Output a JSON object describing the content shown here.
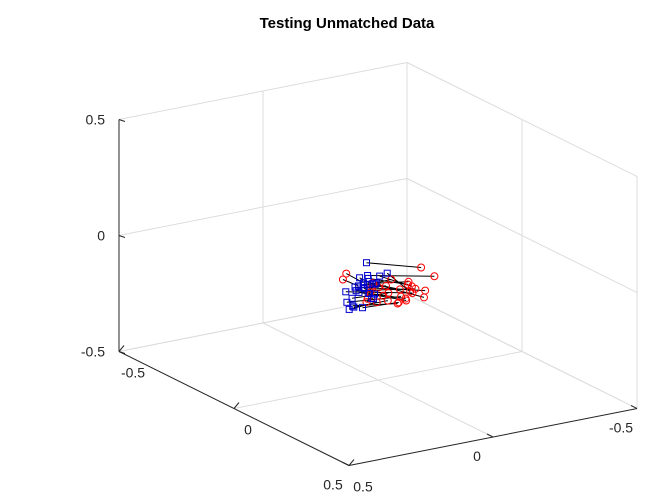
{
  "chart_data": {
    "type": "scatter",
    "title": "Testing Unmatched Data",
    "xlim": [
      -0.5,
      0.5
    ],
    "ylim": [
      -0.5,
      0.5
    ],
    "zlim": [
      -0.5,
      0.5
    ],
    "x_ticks": [
      "-0.5",
      "0",
      "0.5"
    ],
    "y_ticks": [
      "-0.5",
      "0",
      "0.5"
    ],
    "z_ticks": [
      "-0.5",
      "0",
      "0.5"
    ],
    "grid": true,
    "colors": {
      "set_a": "#ff0000",
      "set_b": "#0000cc",
      "link": "#000000"
    },
    "markers": {
      "set_a": "circle",
      "set_b": "square"
    },
    "pairs": [
      {
        "a": [
          0.05,
          0.15,
          0.02
        ],
        "b": [
          0.1,
          0.13,
          0.0
        ]
      },
      {
        "a": [
          0.01,
          0.13,
          -0.03
        ],
        "b": [
          0.04,
          0.1,
          -0.05
        ]
      },
      {
        "a": [
          0.15,
          -0.04,
          -0.08
        ],
        "b": [
          0.05,
          0.05,
          -0.05
        ]
      },
      {
        "a": [
          0.25,
          0.05,
          0.12
        ],
        "b": [
          0.05,
          0.08,
          0.05
        ]
      },
      {
        "a": [
          0.22,
          -0.02,
          0.05
        ],
        "b": [
          0.03,
          0.06,
          -0.02
        ]
      },
      {
        "a": [
          0.18,
          0.04,
          0.01
        ],
        "b": [
          0.02,
          0.05,
          -0.04
        ]
      },
      {
        "a": [
          0.12,
          -0.01,
          -0.02
        ],
        "b": [
          0.03,
          0.03,
          -0.06
        ]
      },
      {
        "a": [
          0.08,
          -0.1,
          -0.1
        ],
        "b": [
          0.0,
          0.08,
          -0.08
        ]
      },
      {
        "a": [
          0.09,
          0.07,
          -0.04
        ],
        "b": [
          0.02,
          0.08,
          -0.03
        ]
      },
      {
        "a": [
          0.06,
          0.02,
          -0.06
        ],
        "b": [
          0.0,
          0.05,
          -0.09
        ]
      },
      {
        "a": [
          0.1,
          -0.05,
          -0.07
        ],
        "b": [
          -0.02,
          0.06,
          -0.11
        ]
      },
      {
        "a": [
          0.07,
          0.01,
          -0.03
        ],
        "b": [
          0.03,
          0.06,
          -0.06
        ]
      },
      {
        "a": [
          0.04,
          0.05,
          -0.05
        ],
        "b": [
          0.01,
          0.06,
          -0.07
        ]
      },
      {
        "a": [
          0.03,
          0.05,
          -0.08
        ],
        "b": [
          0.0,
          0.03,
          -0.12
        ]
      },
      {
        "a": [
          0.08,
          0.09,
          -0.06
        ],
        "b": [
          -0.01,
          0.04,
          -0.1
        ]
      },
      {
        "a": [
          0.12,
          0.0,
          -0.09
        ],
        "b": [
          0.01,
          0.02,
          -0.12
        ]
      },
      {
        "a": [
          0.05,
          -0.08,
          -0.12
        ],
        "b": [
          -0.04,
          0.08,
          -0.12
        ]
      },
      {
        "a": [
          0.06,
          0.03,
          -0.1
        ],
        "b": [
          -0.03,
          0.01,
          -0.14
        ]
      },
      {
        "a": [
          0.02,
          -0.02,
          -0.12
        ],
        "b": [
          -0.05,
          0.05,
          -0.16
        ]
      },
      {
        "a": [
          0.03,
          0.06,
          -0.12
        ],
        "b": [
          -0.02,
          0.0,
          -0.16
        ]
      },
      {
        "a": [
          0.0,
          -0.08,
          -0.16
        ],
        "b": [
          -0.06,
          0.06,
          -0.18
        ]
      },
      {
        "a": [
          0.05,
          0.08,
          -0.12
        ],
        "b": [
          -0.04,
          -0.01,
          -0.17
        ]
      },
      {
        "a": [
          -0.02,
          -0.05,
          -0.18
        ],
        "b": [
          -0.08,
          0.02,
          -0.22
        ]
      },
      {
        "a": [
          0.02,
          0.02,
          -0.15
        ],
        "b": [
          -0.1,
          0.02,
          -0.24
        ]
      },
      {
        "a": [
          0.01,
          -0.06,
          -0.18
        ],
        "b": [
          -0.06,
          0.04,
          -0.2
        ]
      },
      {
        "a": [
          0.06,
          -0.05,
          -0.14
        ],
        "b": [
          -0.02,
          0.05,
          -0.12
        ]
      },
      {
        "a": [
          -0.01,
          -0.08,
          -0.19
        ],
        "b": [
          -0.08,
          -0.01,
          -0.23
        ]
      },
      {
        "a": [
          0.07,
          -0.02,
          -0.08
        ],
        "b": [
          0.0,
          0.02,
          -0.08
        ]
      },
      {
        "a": [
          0.14,
          0.0,
          -0.05
        ],
        "b": [
          0.04,
          0.0,
          -0.02
        ]
      },
      {
        "a": [
          0.11,
          -0.03,
          -0.05
        ],
        "b": [
          0.02,
          0.01,
          -0.04
        ]
      }
    ]
  }
}
